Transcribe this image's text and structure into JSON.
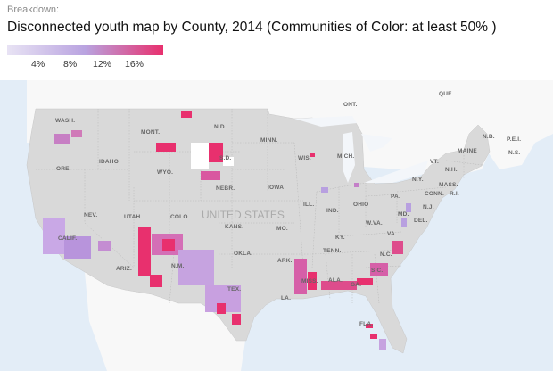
{
  "header": {
    "breakdown_label": "Breakdown:",
    "title": "Disconnected youth map by County, 2014 (Communities of Color: at least 50% )"
  },
  "legend": {
    "ticks": [
      "4%",
      "8%",
      "12%",
      "16%"
    ],
    "colors": {
      "low": "#e6e0f3",
      "mid": "#b39ddf",
      "high": "#e8306e"
    }
  },
  "map": {
    "colors": {
      "ocean": "#e3edf7",
      "foreign_land": "#f8f8f8",
      "us_land": "#d9d9d9",
      "no_data": "#ffffff"
    },
    "country_label": "UNITED STATES",
    "labels": [
      "ONT.",
      "QUE.",
      "N.B.",
      "P.E.I.",
      "N.S.",
      "WASH.",
      "MONT.",
      "N.D.",
      "MINN.",
      "WIS.",
      "MICH.",
      "MAINE",
      "VT.",
      "N.H.",
      "N.Y.",
      "MASS.",
      "CONN.",
      "R.I.",
      "IDAHO",
      "ORE.",
      "WYO.",
      "S.D.",
      "NEBR.",
      "IOWA",
      "ILL.",
      "IND.",
      "OHIO",
      "PA.",
      "N.J.",
      "MD.",
      "DEL.",
      "W.VA.",
      "VA.",
      "NEV.",
      "UTAH",
      "COLO.",
      "KANS.",
      "MO.",
      "KY.",
      "CALIF.",
      "OKLA.",
      "ARK.",
      "TENN.",
      "N.C.",
      "S.C.",
      "ARIZ.",
      "N.M.",
      "TEX.",
      "LA.",
      "MISS.",
      "ALA.",
      "GA.",
      "FLA."
    ]
  }
}
